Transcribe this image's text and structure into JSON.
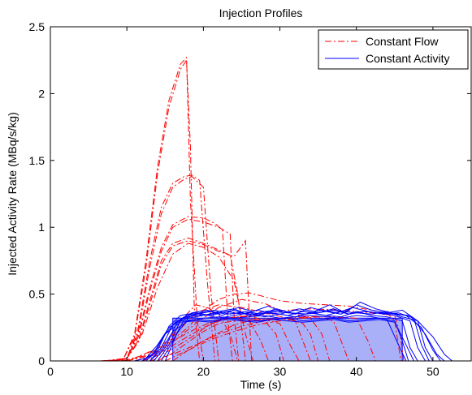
{
  "chart_data": {
    "type": "line",
    "title": "Injection Profiles",
    "xlabel": "Time (s)",
    "ylabel": "Injected Activity Rate (MBq/s/kg)",
    "xlim": [
      0,
      55
    ],
    "ylim": [
      0,
      2.5
    ],
    "xticks": [
      0,
      10,
      20,
      30,
      40,
      50
    ],
    "yticks": [
      0,
      0.5,
      1,
      1.5,
      2,
      2.5
    ],
    "grid": false,
    "legend_position": "top-right",
    "legend": [
      {
        "label": "Constant Flow",
        "style": "dash-dot",
        "color": "#ff0000"
      },
      {
        "label": "Constant Activity",
        "style": "solid",
        "color": "#0000ff"
      }
    ],
    "filled_region": {
      "x": [
        16,
        16,
        46,
        46
      ],
      "y": [
        0,
        0.32,
        0.32,
        0
      ],
      "color": "#aab0f8"
    },
    "series": [
      {
        "style": "dash-dot",
        "color": "#ff0000",
        "x": [
          6.5,
          9.5,
          11,
          12.5,
          14,
          15.5,
          17,
          17.8,
          18.3,
          19.2,
          20
        ],
        "y": [
          0,
          0.01,
          0.2,
          0.75,
          1.45,
          1.95,
          2.22,
          2.27,
          1.2,
          0.3,
          0
        ]
      },
      {
        "style": "dash-dot",
        "color": "#ff0000",
        "x": [
          6.5,
          9.5,
          11,
          12.5,
          14,
          15.5,
          17,
          17.8,
          18.3,
          18.8,
          19.5
        ],
        "y": [
          0,
          0.01,
          0.18,
          0.7,
          1.4,
          1.9,
          2.18,
          2.25,
          1.6,
          0.4,
          0
        ]
      },
      {
        "style": "dash-dot",
        "color": "#ff0000",
        "x": [
          7,
          10,
          11.5,
          13,
          14.5,
          16,
          17.5,
          18.5,
          19.5,
          20.5,
          21.5
        ],
        "y": [
          0,
          0.02,
          0.25,
          0.75,
          1.15,
          1.33,
          1.38,
          1.39,
          1.35,
          0.6,
          0
        ]
      },
      {
        "style": "dash-dot",
        "color": "#ff0000",
        "x": [
          7,
          10,
          11.5,
          13,
          14.5,
          16,
          17.5,
          18.5,
          20,
          21,
          22
        ],
        "y": [
          0,
          0.02,
          0.22,
          0.7,
          1.1,
          1.3,
          1.36,
          1.38,
          1.3,
          0.5,
          0
        ]
      },
      {
        "style": "dash-dot",
        "color": "#ff0000",
        "x": [
          7.5,
          10,
          11.5,
          13,
          14.5,
          16,
          18,
          20,
          21.5,
          22.5,
          23.2,
          23.8
        ],
        "y": [
          0,
          0.02,
          0.2,
          0.55,
          0.85,
          1.02,
          1.08,
          1.07,
          1.03,
          0.98,
          0.3,
          0
        ]
      },
      {
        "style": "dash-dot",
        "color": "#ff0000",
        "x": [
          7.5,
          10,
          11.5,
          13,
          14.5,
          16,
          18,
          20,
          22,
          23.5,
          24,
          24.6
        ],
        "y": [
          0,
          0.02,
          0.18,
          0.52,
          0.82,
          1.0,
          1.06,
          1.04,
          1.0,
          0.95,
          0.35,
          0
        ]
      },
      {
        "style": "dash-dot",
        "color": "#ff0000",
        "x": [
          8,
          10,
          11.5,
          13,
          14.5,
          16,
          18,
          20,
          22,
          23.5,
          24.5,
          25.5
        ],
        "y": [
          0,
          0.02,
          0.15,
          0.45,
          0.75,
          0.88,
          0.92,
          0.88,
          0.83,
          0.79,
          0.5,
          0
        ]
      },
      {
        "style": "dash-dot",
        "color": "#ff0000",
        "x": [
          8,
          10,
          11.5,
          13,
          14.5,
          16,
          18,
          20,
          22,
          24,
          25.5,
          26.3
        ],
        "y": [
          0,
          0.02,
          0.14,
          0.42,
          0.72,
          0.86,
          0.9,
          0.87,
          0.82,
          0.78,
          0.9,
          0
        ]
      },
      {
        "style": "dash-dot",
        "color": "#ff0000",
        "x": [
          8.5,
          10,
          12,
          14,
          16,
          18,
          20,
          22,
          24,
          25.5,
          26.5
        ],
        "y": [
          0,
          0.02,
          0.2,
          0.55,
          0.8,
          0.88,
          0.85,
          0.78,
          0.6,
          0.2,
          0
        ]
      },
      {
        "style": "dash-dot",
        "color": "#ff0000",
        "x": [
          9,
          11,
          13,
          15,
          17,
          19,
          21,
          23,
          25,
          27,
          29,
          31,
          34,
          38,
          42,
          45,
          45.7,
          46.2
        ],
        "y": [
          0,
          0.02,
          0.07,
          0.12,
          0.18,
          0.24,
          0.29,
          0.32,
          0.33,
          0.34,
          0.36,
          0.38,
          0.39,
          0.38,
          0.36,
          0.34,
          0.2,
          0
        ]
      },
      {
        "style": "dash-dot",
        "color": "#ff0000",
        "x": [
          9.5,
          12,
          15,
          18,
          20,
          22,
          24,
          26,
          28,
          30,
          33,
          36,
          39,
          42,
          44,
          45,
          45.8
        ],
        "y": [
          0,
          0.04,
          0.12,
          0.25,
          0.38,
          0.46,
          0.5,
          0.51,
          0.48,
          0.45,
          0.43,
          0.42,
          0.41,
          0.38,
          0.36,
          0.3,
          0
        ]
      },
      {
        "style": "dash-dot",
        "color": "#ff0000",
        "x": [
          10,
          13,
          16,
          19,
          22,
          25,
          28,
          30,
          32,
          34,
          35.5,
          36.5
        ],
        "y": [
          0,
          0.04,
          0.14,
          0.28,
          0.4,
          0.46,
          0.43,
          0.38,
          0.35,
          0.32,
          0.2,
          0
        ]
      },
      {
        "style": "dash-dot",
        "color": "#ff0000",
        "x": [
          10,
          13,
          16,
          19,
          22,
          25,
          28,
          31,
          33,
          34,
          35
        ],
        "y": [
          0,
          0.05,
          0.18,
          0.36,
          0.42,
          0.4,
          0.36,
          0.32,
          0.28,
          0.2,
          0
        ]
      },
      {
        "style": "dash-dot",
        "color": "#ff0000",
        "x": [
          11,
          14,
          17,
          20,
          23,
          26,
          28,
          29.5,
          30.5
        ],
        "y": [
          0,
          0.05,
          0.15,
          0.25,
          0.32,
          0.34,
          0.3,
          0.2,
          0
        ]
      },
      {
        "style": "dash-dot",
        "color": "#ff0000",
        "x": [
          12,
          15,
          18,
          21,
          24,
          26,
          27.5,
          28.5
        ],
        "y": [
          0,
          0.06,
          0.16,
          0.28,
          0.33,
          0.3,
          0.15,
          0
        ]
      },
      {
        "style": "dash-dot",
        "color": "#ff0000",
        "x": [
          12,
          15,
          17,
          19,
          20.5,
          22,
          23.5,
          24.5
        ],
        "y": [
          0,
          0.1,
          0.3,
          0.42,
          0.4,
          0.35,
          0.2,
          0
        ]
      },
      {
        "style": "dash-dot",
        "color": "#ff0000",
        "x": [
          16,
          18,
          20,
          22,
          24,
          26,
          28,
          30,
          32,
          33,
          34
        ],
        "y": [
          0,
          0.08,
          0.15,
          0.21,
          0.27,
          0.3,
          0.31,
          0.32,
          0.3,
          0.15,
          0
        ]
      },
      {
        "style": "dash-dot",
        "color": "#ff0000",
        "x": [
          14,
          16,
          18,
          20,
          22,
          24,
          26,
          28,
          30,
          31.5,
          32.5
        ],
        "y": [
          0,
          0.06,
          0.14,
          0.22,
          0.28,
          0.3,
          0.31,
          0.31,
          0.28,
          0.1,
          0
        ]
      },
      {
        "style": "dash-dot",
        "color": "#ff0000",
        "x": [
          15,
          18,
          21,
          24,
          27,
          30,
          33,
          35,
          37,
          38,
          39
        ],
        "y": [
          0,
          0.08,
          0.16,
          0.22,
          0.27,
          0.3,
          0.32,
          0.33,
          0.3,
          0.15,
          0
        ]
      },
      {
        "style": "dash-dot",
        "color": "#ff0000",
        "x": [
          13,
          16,
          19,
          22,
          25,
          28,
          31,
          34,
          37,
          40,
          41.5,
          42.5
        ],
        "y": [
          0,
          0.05,
          0.12,
          0.2,
          0.26,
          0.3,
          0.32,
          0.33,
          0.33,
          0.32,
          0.15,
          0
        ]
      },
      {
        "style": "solid",
        "color": "#0000ff",
        "x": [
          11,
          12.5,
          14,
          15.5,
          17,
          19,
          21,
          23,
          25,
          27,
          29,
          31,
          33,
          35,
          37,
          39,
          41,
          43,
          45,
          46,
          46.8
        ],
        "y": [
          0,
          0.02,
          0.12,
          0.25,
          0.3,
          0.31,
          0.3,
          0.32,
          0.31,
          0.3,
          0.31,
          0.32,
          0.3,
          0.31,
          0.32,
          0.3,
          0.31,
          0.32,
          0.3,
          0.15,
          0
        ]
      },
      {
        "style": "solid",
        "color": "#0000ff",
        "x": [
          12,
          13.5,
          15,
          16.5,
          18,
          20,
          22,
          24,
          26,
          28,
          30,
          32,
          34,
          36,
          38,
          40,
          42,
          44,
          46,
          47,
          48
        ],
        "y": [
          0,
          0.05,
          0.2,
          0.3,
          0.33,
          0.35,
          0.32,
          0.34,
          0.36,
          0.33,
          0.35,
          0.33,
          0.36,
          0.34,
          0.33,
          0.37,
          0.34,
          0.33,
          0.3,
          0.1,
          0
        ]
      },
      {
        "style": "solid",
        "color": "#0000ff",
        "x": [
          12.5,
          14,
          15.5,
          17,
          19,
          21,
          23,
          25,
          27,
          29,
          31,
          33,
          35,
          37,
          39,
          41,
          43,
          45,
          47,
          48,
          49
        ],
        "y": [
          0,
          0.08,
          0.26,
          0.34,
          0.36,
          0.34,
          0.37,
          0.35,
          0.38,
          0.36,
          0.34,
          0.37,
          0.36,
          0.39,
          0.35,
          0.37,
          0.36,
          0.34,
          0.3,
          0.1,
          0
        ]
      },
      {
        "style": "solid",
        "color": "#0000ff",
        "x": [
          13,
          14.5,
          16,
          17.5,
          19.5,
          21.5,
          23.5,
          25.5,
          27.5,
          29.5,
          31.5,
          33.5,
          35.5,
          37.5,
          39.5,
          41.5,
          43.5,
          45.5,
          47.5,
          48.5,
          49.5
        ],
        "y": [
          0,
          0.1,
          0.27,
          0.33,
          0.36,
          0.38,
          0.35,
          0.37,
          0.35,
          0.39,
          0.36,
          0.35,
          0.38,
          0.36,
          0.4,
          0.37,
          0.35,
          0.36,
          0.32,
          0.12,
          0
        ]
      },
      {
        "style": "solid",
        "color": "#0000ff",
        "x": [
          13.5,
          15,
          16.5,
          18,
          20,
          22,
          24,
          26,
          28,
          30,
          32,
          34,
          36,
          38,
          40,
          42,
          44,
          46,
          48,
          49,
          50
        ],
        "y": [
          0,
          0.1,
          0.28,
          0.35,
          0.34,
          0.37,
          0.39,
          0.34,
          0.37,
          0.38,
          0.35,
          0.4,
          0.37,
          0.35,
          0.42,
          0.38,
          0.36,
          0.38,
          0.3,
          0.1,
          0
        ]
      },
      {
        "style": "solid",
        "color": "#0000ff",
        "x": [
          14,
          15.5,
          17,
          18.5,
          20.5,
          22.5,
          24.5,
          26.5,
          28.5,
          30.5,
          32.5,
          34.5,
          36.5,
          38.5,
          40.5,
          42.5,
          44.5,
          46.5,
          48.5,
          50,
          51
        ],
        "y": [
          0,
          0.12,
          0.3,
          0.36,
          0.38,
          0.34,
          0.4,
          0.37,
          0.41,
          0.36,
          0.39,
          0.37,
          0.42,
          0.36,
          0.44,
          0.39,
          0.36,
          0.34,
          0.25,
          0.08,
          0
        ]
      },
      {
        "style": "solid",
        "color": "#0000ff",
        "x": [
          12,
          13.5,
          15,
          17,
          19,
          21,
          23,
          25,
          27,
          29,
          31,
          33,
          35,
          37,
          39,
          41,
          43,
          45,
          46.5,
          47.5
        ],
        "y": [
          0,
          0.06,
          0.2,
          0.29,
          0.3,
          0.29,
          0.31,
          0.3,
          0.29,
          0.31,
          0.3,
          0.29,
          0.3,
          0.31,
          0.29,
          0.3,
          0.31,
          0.29,
          0.12,
          0
        ]
      },
      {
        "style": "solid",
        "color": "#0000ff",
        "x": [
          14.5,
          16,
          17.5,
          19,
          21,
          23,
          25,
          27,
          29,
          31,
          33,
          35,
          37,
          39,
          41,
          43,
          45,
          47,
          49,
          50.5,
          51.5
        ],
        "y": [
          0,
          0.15,
          0.31,
          0.35,
          0.37,
          0.35,
          0.36,
          0.34,
          0.37,
          0.36,
          0.35,
          0.36,
          0.38,
          0.35,
          0.37,
          0.36,
          0.35,
          0.34,
          0.2,
          0.05,
          0
        ]
      },
      {
        "style": "solid",
        "color": "#0000ff",
        "x": [
          13,
          14.5,
          16,
          18,
          20,
          22,
          24,
          26,
          28,
          30,
          32,
          34,
          36,
          38,
          40,
          42,
          44,
          45.5,
          46.5
        ],
        "y": [
          0,
          0.08,
          0.22,
          0.3,
          0.32,
          0.33,
          0.32,
          0.33,
          0.34,
          0.32,
          0.33,
          0.34,
          0.33,
          0.32,
          0.34,
          0.33,
          0.31,
          0.12,
          0
        ]
      },
      {
        "style": "solid",
        "color": "#0000ff",
        "x": [
          15,
          16.5,
          18,
          20,
          22,
          24,
          26,
          28,
          30,
          32,
          34,
          36,
          38,
          40,
          42,
          44,
          46,
          48,
          50,
          51.5,
          52.5
        ],
        "y": [
          0,
          0.2,
          0.32,
          0.34,
          0.36,
          0.38,
          0.34,
          0.36,
          0.35,
          0.38,
          0.36,
          0.34,
          0.37,
          0.36,
          0.35,
          0.37,
          0.33,
          0.3,
          0.18,
          0.05,
          0
        ]
      }
    ]
  }
}
